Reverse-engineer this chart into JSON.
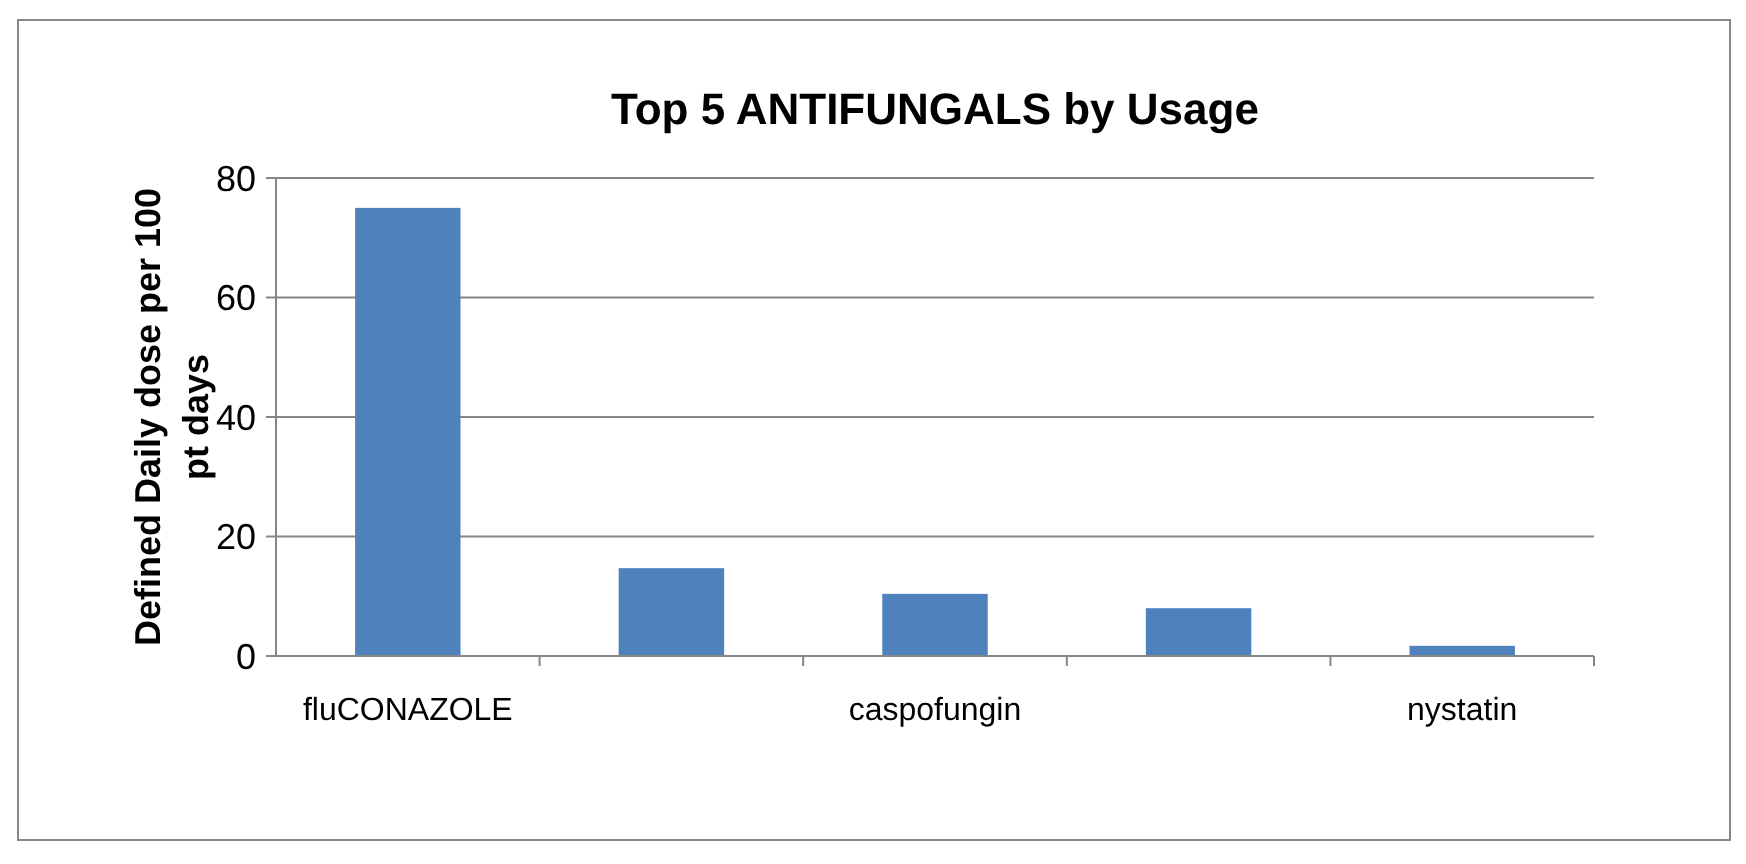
{
  "chart_data": {
    "type": "bar",
    "title": "Top 5 ANTIFUNGALS by Usage",
    "ylabel": "Defined Daily dose per 100 pt days",
    "categories": [
      "fluCONAZOLE",
      null,
      "caspofungin",
      null,
      "nystatin"
    ],
    "values": [
      75,
      14.7,
      10.4,
      8,
      1.7
    ],
    "color": "#4f81bd",
    "ylim": [
      0,
      80
    ],
    "yticks": [
      0,
      20,
      40,
      60,
      80
    ],
    "grid": "y"
  }
}
